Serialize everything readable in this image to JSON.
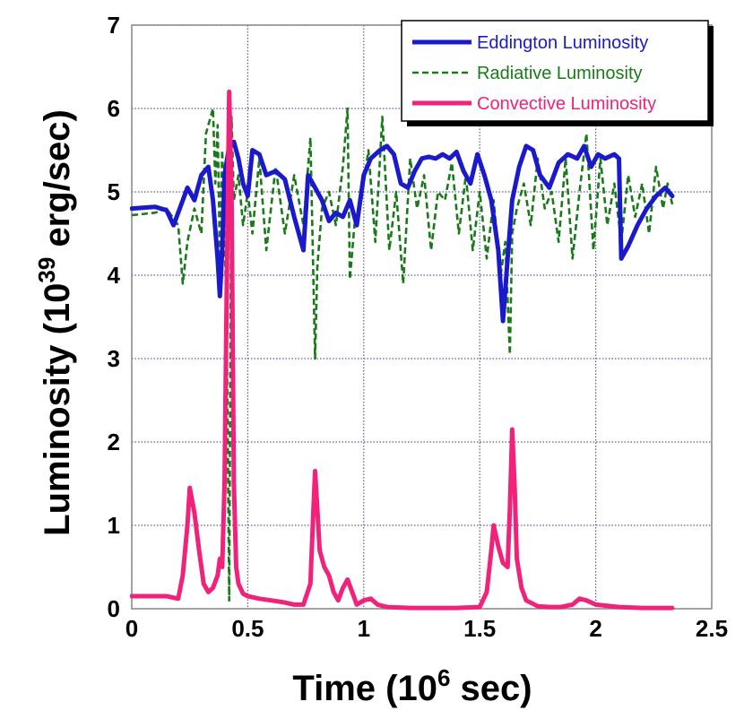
{
  "chart_data": {
    "type": "line",
    "xlabel": {
      "main": "Time (10",
      "sup": "6",
      "end": " sec)"
    },
    "ylabel": {
      "main": "Luminosity  (10",
      "sup": "39",
      "end": " erg/sec)"
    },
    "xlim": [
      0,
      2.5
    ],
    "ylim": [
      0,
      7
    ],
    "xticks": [
      0,
      0.5,
      1,
      1.5,
      2,
      2.5
    ],
    "xtick_labels": [
      "0",
      "0.5",
      "1",
      "1.5",
      "2",
      "2.5"
    ],
    "yticks": [
      0,
      1,
      2,
      3,
      4,
      5,
      6,
      7
    ],
    "ytick_labels": [
      "0",
      "1",
      "2",
      "3",
      "4",
      "5",
      "6",
      "7"
    ],
    "grid": true,
    "legend_position": "top-right",
    "series": [
      {
        "name": "Eddington Luminosity",
        "color": "#1a1acc",
        "style": "solid",
        "x": [
          0,
          0.1,
          0.15,
          0.18,
          0.2,
          0.24,
          0.27,
          0.3,
          0.33,
          0.35,
          0.37,
          0.38,
          0.39,
          0.4,
          0.42,
          0.44,
          0.46,
          0.48,
          0.5,
          0.52,
          0.55,
          0.58,
          0.62,
          0.66,
          0.7,
          0.74,
          0.76,
          0.79,
          0.82,
          0.85,
          0.88,
          0.91,
          0.94,
          0.97,
          1,
          1.03,
          1.07,
          1.1,
          1.13,
          1.16,
          1.19,
          1.22,
          1.25,
          1.28,
          1.31,
          1.34,
          1.37,
          1.4,
          1.43,
          1.46,
          1.49,
          1.52,
          1.55,
          1.58,
          1.6,
          1.62,
          1.64,
          1.67,
          1.7,
          1.73,
          1.76,
          1.8,
          1.84,
          1.88,
          1.92,
          1.95,
          1.98,
          2.01,
          2.04,
          2.08,
          2.1,
          2.11,
          2.14,
          2.18,
          2.22,
          2.26,
          2.3,
          2.33
        ],
        "y": [
          4.8,
          4.82,
          4.78,
          4.6,
          4.75,
          5.05,
          4.9,
          5.2,
          5.3,
          4.9,
          4.2,
          3.75,
          4.3,
          5.2,
          5.55,
          5.6,
          5.4,
          5.1,
          4.95,
          5.5,
          5.45,
          5.2,
          5.25,
          5.15,
          4.7,
          4.3,
          5.2,
          5.05,
          4.9,
          4.65,
          4.75,
          4.7,
          4.9,
          4.6,
          5.2,
          5.4,
          5.5,
          5.55,
          5.45,
          5.1,
          5.05,
          5.25,
          5.4,
          5.42,
          5.4,
          5.45,
          5.4,
          5.48,
          5.25,
          5.1,
          5.45,
          5.2,
          4.9,
          4.3,
          3.45,
          4.2,
          4.9,
          5.3,
          5.55,
          5.5,
          5.2,
          5.05,
          5.35,
          5.45,
          5.4,
          5.55,
          5.3,
          5.45,
          5.4,
          5.45,
          5.4,
          4.2,
          4.35,
          4.6,
          4.8,
          4.95,
          5.05,
          4.95
        ]
      },
      {
        "name": "Radiative Luminosity",
        "color": "#1a7a1a",
        "style": "dashed",
        "x": [
          0,
          0.1,
          0.15,
          0.2,
          0.22,
          0.24,
          0.27,
          0.3,
          0.32,
          0.35,
          0.36,
          0.37,
          0.38,
          0.39,
          0.4,
          0.41,
          0.42,
          0.43,
          0.44,
          0.46,
          0.48,
          0.5,
          0.52,
          0.55,
          0.58,
          0.62,
          0.66,
          0.7,
          0.74,
          0.77,
          0.79,
          0.8,
          0.82,
          0.85,
          0.88,
          0.91,
          0.93,
          0.94,
          0.96,
          0.99,
          1.02,
          1.05,
          1.08,
          1.11,
          1.14,
          1.17,
          1.2,
          1.23,
          1.26,
          1.29,
          1.32,
          1.35,
          1.38,
          1.41,
          1.44,
          1.47,
          1.5,
          1.53,
          1.56,
          1.59,
          1.61,
          1.63,
          1.64,
          1.66,
          1.69,
          1.72,
          1.75,
          1.78,
          1.81,
          1.84,
          1.87,
          1.9,
          1.93,
          1.96,
          1.99,
          2.02,
          2.05,
          2.08,
          2.11,
          2.14,
          2.17,
          2.2,
          2.23,
          2.26,
          2.29,
          2.31,
          2.33
        ],
        "y": [
          4.72,
          4.75,
          4.8,
          4.6,
          3.9,
          4.4,
          4.8,
          4.5,
          5.7,
          6.0,
          5.1,
          5.8,
          4.2,
          5.5,
          4.6,
          3.2,
          0.1,
          5.9,
          4.9,
          5.2,
          4.6,
          5.0,
          4.5,
          5.4,
          4.3,
          5.3,
          4.5,
          5.2,
          4.6,
          5.65,
          3.0,
          4.1,
          4.8,
          5.0,
          4.6,
          5.3,
          6.0,
          3.95,
          4.6,
          4.9,
          5.5,
          4.4,
          5.9,
          4.3,
          5.0,
          3.9,
          5.4,
          4.8,
          5.2,
          4.3,
          5.0,
          4.9,
          5.35,
          4.5,
          5.2,
          4.3,
          5.0,
          4.2,
          4.9,
          4.0,
          4.4,
          3.05,
          4.5,
          4.8,
          5.1,
          4.6,
          5.4,
          4.8,
          5.0,
          4.4,
          5.4,
          4.2,
          5.0,
          5.7,
          4.3,
          5.4,
          4.6,
          5.1,
          4.4,
          5.2,
          4.7,
          5.1,
          4.5,
          5.3,
          4.8,
          5.1,
          4.85
        ]
      },
      {
        "name": "Convective Luminosity",
        "color": "#f0227a",
        "style": "solid",
        "x": [
          0,
          0.1,
          0.15,
          0.2,
          0.22,
          0.24,
          0.25,
          0.27,
          0.29,
          0.31,
          0.33,
          0.35,
          0.37,
          0.38,
          0.39,
          0.4,
          0.41,
          0.42,
          0.43,
          0.44,
          0.45,
          0.46,
          0.48,
          0.5,
          0.55,
          0.6,
          0.65,
          0.7,
          0.74,
          0.77,
          0.78,
          0.79,
          0.8,
          0.81,
          0.83,
          0.85,
          0.87,
          0.89,
          0.91,
          0.93,
          0.95,
          0.97,
          1.0,
          1.03,
          1.06,
          1.1,
          1.2,
          1.3,
          1.4,
          1.5,
          1.53,
          1.55,
          1.56,
          1.58,
          1.6,
          1.62,
          1.63,
          1.64,
          1.65,
          1.66,
          1.68,
          1.7,
          1.75,
          1.8,
          1.85,
          1.9,
          1.93,
          1.96,
          2.0,
          2.1,
          2.2,
          2.3,
          2.33
        ],
        "y": [
          0.15,
          0.15,
          0.15,
          0.12,
          0.4,
          1.0,
          1.45,
          1.15,
          0.7,
          0.3,
          0.2,
          0.25,
          0.4,
          0.6,
          0.5,
          1.5,
          4.0,
          6.2,
          5.0,
          1.5,
          0.5,
          0.3,
          0.18,
          0.15,
          0.12,
          0.1,
          0.08,
          0.05,
          0.05,
          0.3,
          1.0,
          1.65,
          1.2,
          0.7,
          0.5,
          0.4,
          0.2,
          0.1,
          0.25,
          0.35,
          0.2,
          0.05,
          0.1,
          0.12,
          0.05,
          0.02,
          0.01,
          0.01,
          0.01,
          0.02,
          0.2,
          0.7,
          1.0,
          0.75,
          0.55,
          0.5,
          1.2,
          2.15,
          1.5,
          0.6,
          0.25,
          0.1,
          0.03,
          0.02,
          0.02,
          0.05,
          0.12,
          0.1,
          0.05,
          0.02,
          0.01,
          0.01,
          0.01
        ]
      }
    ]
  }
}
